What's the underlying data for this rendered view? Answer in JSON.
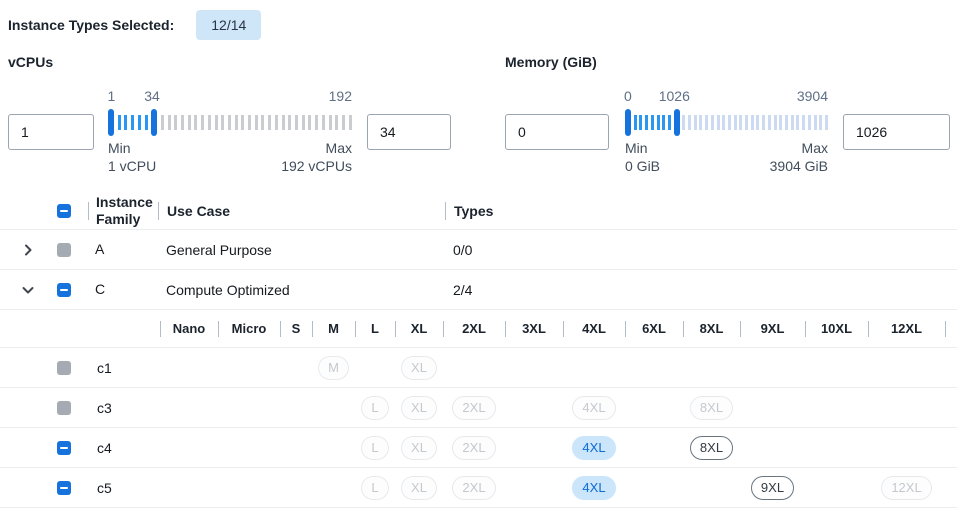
{
  "colors": {
    "accent_blue": "#1673dd",
    "slider_active": "#2b97f0",
    "vcpu_inactive_tick": "#c9cdd2",
    "memory_inactive_tick": "#ccdaf2",
    "badge_bg": "#cfe6f9",
    "selected_pill_bg": "#cbe5fb",
    "selected_pill_text": "#0b6bd3",
    "disabled_checkbox_grey": "#a5abb3"
  },
  "header": {
    "label": "Instance Types Selected:",
    "badge": "12/14"
  },
  "filters": [
    {
      "id": "vcpus",
      "label": "vCPUs",
      "min_value": "1",
      "max_value": "34",
      "scale": {
        "min": "1",
        "thumb": "34",
        "max": "192"
      },
      "min_caption": {
        "line1": "Min",
        "line2": "1 vCPU"
      },
      "max_caption": {
        "line1": "Max",
        "line2": "192 vCPUs"
      },
      "slider": {
        "ticks": 36,
        "thumb1": 0,
        "thumb2": 6,
        "inactive_color_key": "vcpu_inactive_tick"
      }
    },
    {
      "id": "memory",
      "label": "Memory (GiB)",
      "min_value": "0",
      "max_value": "1026",
      "scale": {
        "min": "0",
        "thumb": "1026",
        "max": "3904"
      },
      "min_caption": {
        "line1": "Min",
        "line2": "0 GiB"
      },
      "max_caption": {
        "line1": "Max",
        "line2": "3904 GiB"
      },
      "slider": {
        "ticks": 35,
        "thumb1": 0,
        "thumb2": 8,
        "inactive_color_key": "memory_inactive_tick"
      }
    }
  ],
  "table": {
    "headers": {
      "family": "Instance Family",
      "use_case": "Use Case",
      "types": "Types"
    },
    "header_checkbox": "indeterminate",
    "family_rows": [
      {
        "family": "A",
        "use_case": "General Purpose",
        "types": "0/0",
        "expanded": false,
        "checkbox": "disabled"
      },
      {
        "family": "C",
        "use_case": "Compute Optimized",
        "types": "2/4",
        "expanded": true,
        "checkbox": "indeterminate"
      }
    ],
    "size_columns": [
      "Nano",
      "Micro",
      "S",
      "M",
      "L",
      "XL",
      "2XL",
      "3XL",
      "4XL",
      "6XL",
      "8XL",
      "9XL",
      "10XL",
      "12XL"
    ],
    "instance_rows": [
      {
        "name": "c1",
        "checkbox": "disabled",
        "sizes": {
          "M": "disabled",
          "XL": "disabled"
        }
      },
      {
        "name": "c3",
        "checkbox": "disabled",
        "sizes": {
          "L": "disabled",
          "XL": "disabled",
          "2XL": "disabled",
          "4XL": "disabled",
          "8XL": "disabled"
        }
      },
      {
        "name": "c4",
        "checkbox": "indeterminate",
        "sizes": {
          "L": "disabled",
          "XL": "disabled",
          "2XL": "disabled",
          "4XL": "selected",
          "8XL": "enabled"
        }
      },
      {
        "name": "c5",
        "checkbox": "indeterminate",
        "sizes": {
          "L": "disabled",
          "XL": "disabled",
          "2XL": "disabled",
          "4XL": "selected",
          "9XL": "enabled",
          "12XL": "disabled"
        }
      }
    ]
  }
}
